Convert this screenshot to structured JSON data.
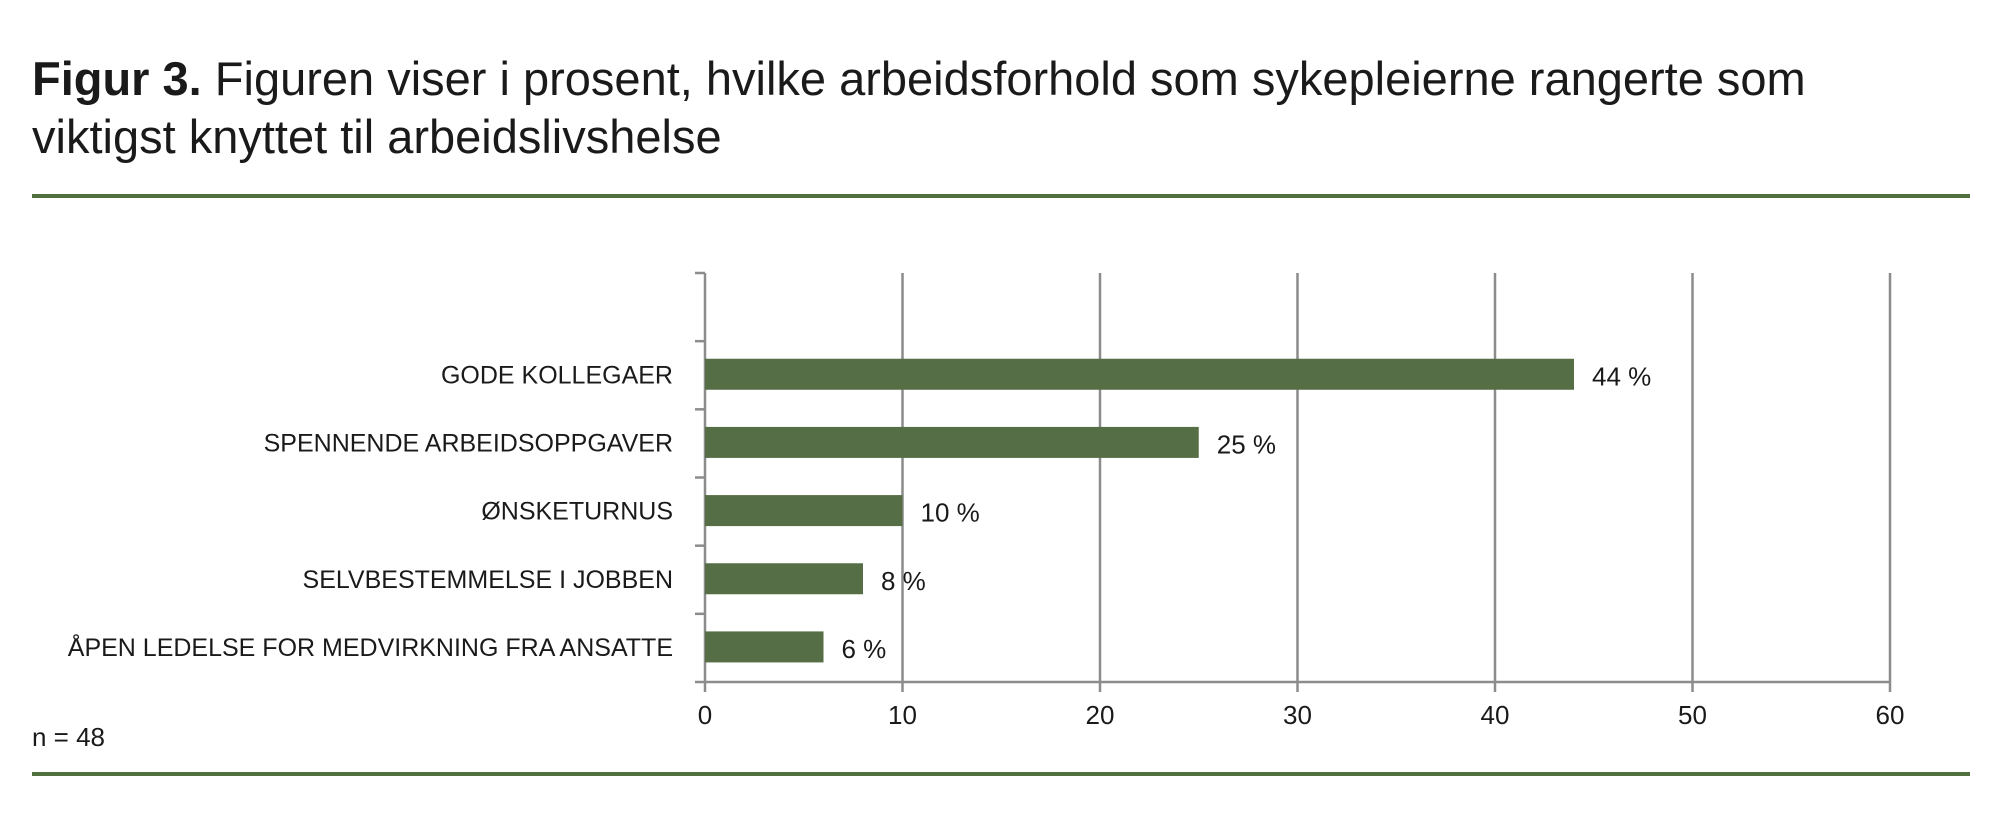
{
  "caption": {
    "label": "Figur 3.",
    "text": "Figuren viser i prosent, hvilke arbeidsforhold som sykepleierne rangerte som viktigst knyttet til arbeidslivshelse"
  },
  "note": "n = 48",
  "colors": {
    "bar": "#566e45",
    "rule": "#52703f",
    "grid": "#8c8c8c"
  },
  "chart_data": {
    "type": "bar",
    "orientation": "horizontal",
    "categories": [
      "GODE KOLLEGAER",
      "SPENNENDE ARBEIDSOPPGAVER",
      "ØNSKETURNUS",
      "SELVBESTEMMELSE I JOBBEN",
      "ÅPEN LEDELSE FOR MEDVIRKNING FRA ANSATTE"
    ],
    "values": [
      44,
      25,
      10,
      8,
      6
    ],
    "data_labels": [
      "44 %",
      "25 %",
      "10 %",
      "8 %",
      "6 %"
    ],
    "xlim": [
      0,
      60
    ],
    "xticks": [
      0,
      10,
      20,
      30,
      40,
      50,
      60
    ],
    "grid": true,
    "xlabel": "",
    "ylabel": ""
  }
}
